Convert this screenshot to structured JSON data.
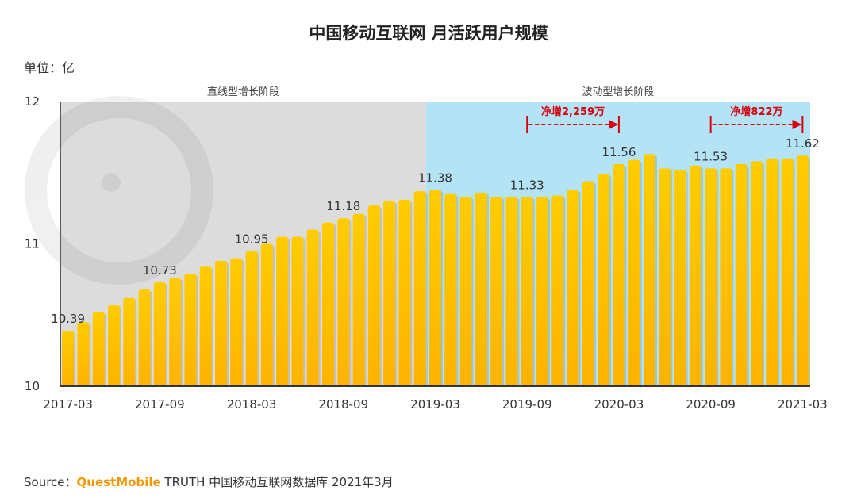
{
  "title": "中国移动互联网 月活跃用户规模",
  "unit_label": "单位：亿",
  "source": {
    "prefix": "Source：",
    "brand": "QuestMobile",
    "rest": " TRUTH 中国移动互联网数据库 2021年3月"
  },
  "colors": {
    "bar_top": "#FFCC00",
    "bar_bottom": "#FFB300",
    "phase1_bg": "#DCDCDC",
    "phase2_bg": "#B3E3F5",
    "annotation": "#D7000F"
  },
  "chart_data": {
    "type": "bar",
    "title": "中国移动互联网 月活跃用户规模",
    "ylabel": "单位：亿",
    "ylim": [
      10,
      12
    ],
    "yticks": [
      "10",
      "11",
      "12"
    ],
    "xticks": [
      "2017-03",
      "2017-09",
      "2018-03",
      "2018-09",
      "2019-03",
      "2019-09",
      "2020-03",
      "2020-09",
      "2021-03"
    ],
    "categories": [
      "2017-03",
      "2017-04",
      "2017-05",
      "2017-06",
      "2017-07",
      "2017-08",
      "2017-09",
      "2017-10",
      "2017-11",
      "2017-12",
      "2018-01",
      "2018-02",
      "2018-03",
      "2018-04",
      "2018-05",
      "2018-06",
      "2018-07",
      "2018-08",
      "2018-09",
      "2018-10",
      "2018-11",
      "2018-12",
      "2019-01",
      "2019-02",
      "2019-03",
      "2019-04",
      "2019-05",
      "2019-06",
      "2019-07",
      "2019-08",
      "2019-09",
      "2019-10",
      "2019-11",
      "2019-12",
      "2020-01",
      "2020-02",
      "2020-03",
      "2020-04",
      "2020-05",
      "2020-06",
      "2020-07",
      "2020-08",
      "2020-09",
      "2020-10",
      "2020-11",
      "2020-12",
      "2021-01",
      "2021-02",
      "2021-03"
    ],
    "values": [
      10.39,
      10.45,
      10.52,
      10.57,
      10.62,
      10.68,
      10.73,
      10.76,
      10.79,
      10.84,
      10.88,
      10.9,
      10.95,
      11.0,
      11.05,
      11.05,
      11.1,
      11.15,
      11.18,
      11.21,
      11.27,
      11.3,
      11.31,
      11.37,
      11.38,
      11.35,
      11.33,
      11.36,
      11.33,
      11.33,
      11.33,
      11.33,
      11.34,
      11.38,
      11.44,
      11.49,
      11.56,
      11.59,
      11.63,
      11.53,
      11.52,
      11.55,
      11.53,
      11.53,
      11.56,
      11.58,
      11.6,
      11.6,
      11.62
    ],
    "data_labels": [
      {
        "category": "2017-03",
        "text": "10.39"
      },
      {
        "category": "2017-09",
        "text": "10.73"
      },
      {
        "category": "2018-03",
        "text": "10.95"
      },
      {
        "category": "2018-09",
        "text": "11.18"
      },
      {
        "category": "2019-03",
        "text": "11.38"
      },
      {
        "category": "2019-09",
        "text": "11.33"
      },
      {
        "category": "2020-03",
        "text": "11.56"
      },
      {
        "category": "2020-09",
        "text": "11.53"
      },
      {
        "category": "2021-03",
        "text": "11.62"
      }
    ],
    "phases": [
      {
        "label": "直线型增长阶段",
        "from": "2017-03",
        "to": "2019-02"
      },
      {
        "label": "波动型增长阶段",
        "from": "2019-03",
        "to": "2021-03"
      }
    ],
    "annotations": [
      {
        "text": "净增2,259万",
        "from": "2019-09",
        "to": "2020-03"
      },
      {
        "text": "净增822万",
        "from": "2020-09",
        "to": "2021-03"
      }
    ],
    "grid": false,
    "legend": "none"
  }
}
